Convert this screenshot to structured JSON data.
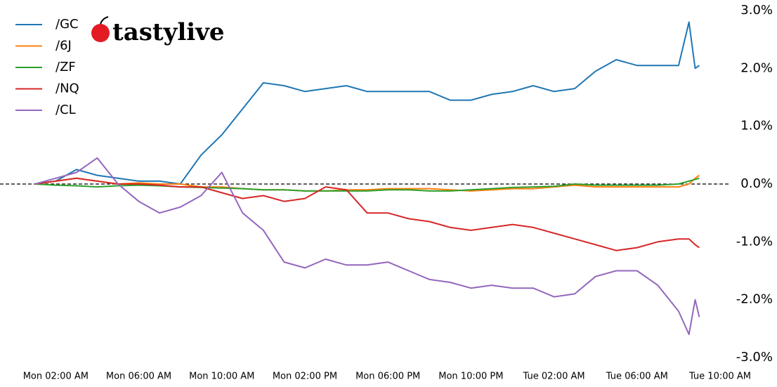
{
  "chart_data": {
    "type": "line",
    "logo": "tastylive",
    "x": [
      1,
      2,
      3,
      4,
      5,
      6,
      7,
      8,
      9,
      10,
      11,
      12,
      13,
      14,
      15,
      16,
      17,
      18,
      19,
      20,
      21,
      22,
      23,
      24,
      25,
      26,
      27,
      28,
      29,
      30,
      31,
      32,
      32.5,
      32.8,
      33
    ],
    "series": [
      {
        "name": "/GC",
        "color": "#1f77b4",
        "values": [
          0,
          0.05,
          0.25,
          0.15,
          0.1,
          0.05,
          0.05,
          0.0,
          0.5,
          0.85,
          1.3,
          1.75,
          1.7,
          1.6,
          1.65,
          1.7,
          1.6,
          1.6,
          1.6,
          1.6,
          1.45,
          1.45,
          1.55,
          1.6,
          1.7,
          1.6,
          1.65,
          1.95,
          2.15,
          2.05,
          2.05,
          2.05,
          2.8,
          2.0,
          2.05
        ]
      },
      {
        "name": "/6J",
        "color": "#ff7f0e",
        "values": [
          0,
          0.05,
          0.1,
          0.05,
          0,
          0.02,
          0,
          0,
          -0.05,
          -0.05,
          -0.08,
          -0.1,
          -0.1,
          -0.12,
          -0.12,
          -0.1,
          -0.1,
          -0.08,
          -0.08,
          -0.08,
          -0.1,
          -0.12,
          -0.1,
          -0.08,
          -0.08,
          -0.05,
          -0.02,
          -0.05,
          -0.05,
          -0.05,
          -0.05,
          -0.05,
          0.0,
          0.1,
          0.15
        ]
      },
      {
        "name": "/ZF",
        "color": "#2ca02c",
        "values": [
          0,
          -0.02,
          -0.03,
          -0.05,
          -0.03,
          -0.02,
          -0.03,
          -0.05,
          -0.06,
          -0.07,
          -0.08,
          -0.1,
          -0.1,
          -0.12,
          -0.12,
          -0.12,
          -0.12,
          -0.1,
          -0.1,
          -0.12,
          -0.12,
          -0.1,
          -0.08,
          -0.06,
          -0.05,
          -0.04,
          0.0,
          -0.02,
          -0.02,
          -0.02,
          -0.02,
          0.0,
          0.05,
          0.08,
          0.1
        ]
      },
      {
        "name": "/NQ",
        "color": "#d62728",
        "values": [
          0,
          0.05,
          0.1,
          0.05,
          0,
          0,
          -0.02,
          -0.05,
          -0.05,
          -0.15,
          -0.25,
          -0.2,
          -0.3,
          -0.25,
          -0.05,
          -0.1,
          -0.5,
          -0.5,
          -0.6,
          -0.65,
          -0.75,
          -0.8,
          -0.75,
          -0.7,
          -0.75,
          -0.85,
          -0.95,
          -1.05,
          -1.15,
          -1.1,
          -1.0,
          -0.95,
          -0.95,
          -1.05,
          -1.1
        ]
      },
      {
        "name": "/CL",
        "color": "#9467bd",
        "values": [
          0,
          0.1,
          0.2,
          0.45,
          0,
          -0.3,
          -0.5,
          -0.4,
          -0.2,
          0.2,
          -0.5,
          -0.8,
          -1.35,
          -1.45,
          -1.3,
          -1.4,
          -1.4,
          -1.35,
          -1.5,
          -1.65,
          -1.7,
          -1.8,
          -1.75,
          -1.8,
          -1.8,
          -1.95,
          -1.9,
          -1.6,
          -1.5,
          -1.5,
          -1.75,
          -2.2,
          -2.6,
          -2.0,
          -2.3
        ]
      }
    ],
    "xlim": [
      0.5,
      34
    ],
    "xticks": [
      {
        "value": 2,
        "label": "Mon 02:00 AM"
      },
      {
        "value": 6,
        "label": "Mon 06:00 AM"
      },
      {
        "value": 10,
        "label": "Mon 10:00 AM"
      },
      {
        "value": 14,
        "label": "Mon 02:00 PM"
      },
      {
        "value": 18,
        "label": "Mon 06:00 PM"
      },
      {
        "value": 22,
        "label": "Mon 10:00 PM"
      },
      {
        "value": 26,
        "label": "Tue 02:00 AM"
      },
      {
        "value": 30,
        "label": "Tue 06:00 AM"
      },
      {
        "value": 34,
        "label": "Tue 10:00 AM"
      }
    ],
    "ylim": [
      -3,
      3
    ],
    "yticks": [
      {
        "value": 3,
        "label": "3.0%"
      },
      {
        "value": 2,
        "label": "2.0%"
      },
      {
        "value": 1,
        "label": "1.0%"
      },
      {
        "value": 0,
        "label": "0.0%"
      },
      {
        "value": -1,
        "label": "-1.0%"
      },
      {
        "value": -2,
        "label": "-2.0%"
      },
      {
        "value": -3,
        "label": "-3.0%"
      }
    ],
    "reference_line": 0,
    "legend": "upper left"
  }
}
